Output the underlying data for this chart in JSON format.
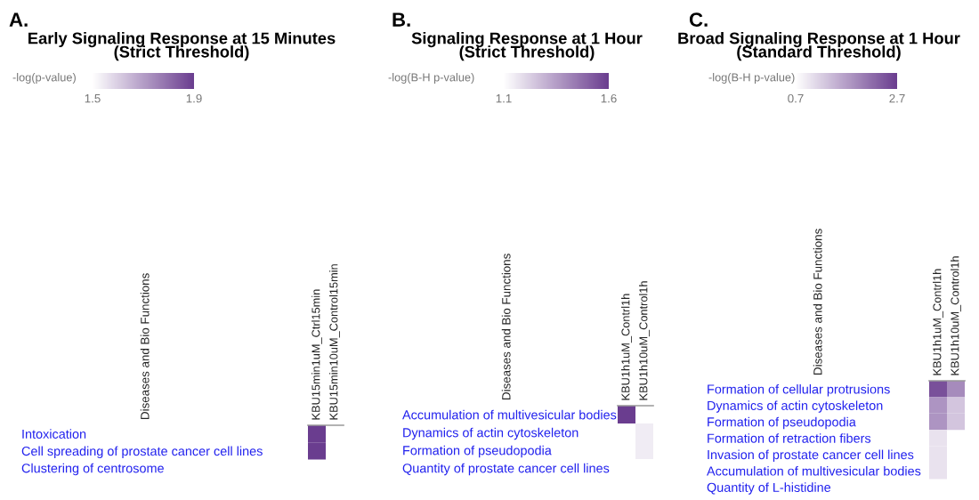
{
  "chart_data": [
    {
      "type": "heatmap",
      "title": "Early Signaling Response at 15 Minutes\n(Strict Threshold)",
      "annotations": [
        "A.",
        "Diseases and Bio Functions"
      ],
      "clabel": "-log(p-value)",
      "clim": [
        1.5,
        1.9
      ],
      "cticks": [
        1.5,
        1.9
      ],
      "colors": [
        "#ffffff",
        "#6a3d8f"
      ],
      "categories": [
        "KBU15min1uM_Ctrl15min",
        "KBU15min10uM_Control15min"
      ],
      "y_categories": [
        "Intoxication",
        "Cell spreading of prostate cancer cell lines",
        "Clustering of centrosome"
      ],
      "cells": [
        [
          1.9,
          null
        ],
        [
          1.9,
          null
        ],
        [
          null,
          null
        ]
      ]
    },
    {
      "type": "heatmap",
      "title": "Signaling Response at 1 Hour\n(Strict Threshold)",
      "annotations": [
        "B.",
        "Diseases and Bio Functions"
      ],
      "clabel": "-log(B-H p-value)",
      "clim": [
        1.1,
        1.6
      ],
      "cticks": [
        1.1,
        1.6
      ],
      "colors": [
        "#ffffff",
        "#6a3d8f"
      ],
      "categories": [
        "KBU1h1uM_Contrl1h",
        "KBU1h10uM_Control1h"
      ],
      "y_categories": [
        "Accumulation of multivesicular bodies",
        "Dynamics of actin cytoskeleton",
        "Formation of pseudopodia",
        "Quantity of prostate cancer cell lines"
      ],
      "cells": [
        [
          1.6,
          null
        ],
        [
          null,
          1.15
        ],
        [
          null,
          1.15
        ],
        [
          null,
          null
        ]
      ]
    },
    {
      "type": "heatmap",
      "title": "Broad Signaling Response at 1 Hour\n(Standard Threshold)",
      "annotations": [
        "C.",
        "Diseases and Bio Functions"
      ],
      "clabel": "-log(B-H p-value)",
      "clim": [
        0.7,
        2.7
      ],
      "cticks": [
        0.7,
        2.7
      ],
      "colors": [
        "#ffffff",
        "#6a3d8f"
      ],
      "categories": [
        "KBU1h1uM_Contrl1h",
        "KBU1h10uM_Control1h"
      ],
      "y_categories": [
        "Formation of cellular protrusions",
        "Dynamics of actin cytoskeleton",
        "Formation of pseudopodia",
        "Formation of retraction fibers",
        "Invasion of prostate cancer cell lines",
        "Accumulation of multivesicular bodies",
        "Quantity of L-histidine"
      ],
      "cells": [
        [
          2.5,
          1.9
        ],
        [
          1.8,
          1.3
        ],
        [
          1.8,
          1.3
        ],
        [
          1.0,
          null
        ],
        [
          1.0,
          null
        ],
        [
          1.0,
          null
        ],
        [
          null,
          null
        ]
      ]
    }
  ]
}
